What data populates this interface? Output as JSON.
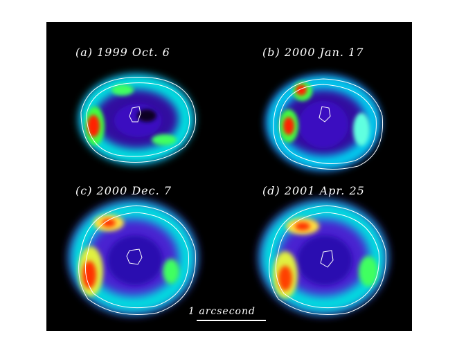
{
  "panels": [
    {
      "label": "(a) 1999 Oct. 6"
    },
    {
      "label": "(b) 2000 Jan. 17"
    },
    {
      "label": "(c) 2000 Dec. 7"
    },
    {
      "label": "(d) 2001 Apr. 25"
    }
  ],
  "scalebar": {
    "label": "1 arcsecond"
  },
  "colors": {
    "background": "#000000",
    "contour": "#ffffff"
  }
}
